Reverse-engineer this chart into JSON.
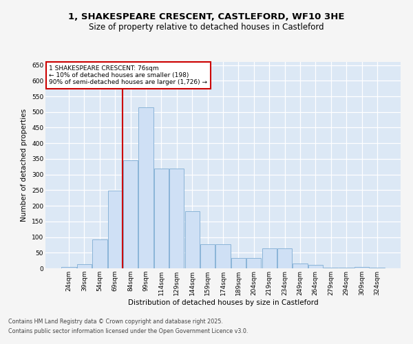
{
  "title1": "1, SHAKESPEARE CRESCENT, CASTLEFORD, WF10 3HE",
  "title2": "Size of property relative to detached houses in Castleford",
  "xlabel": "Distribution of detached houses by size in Castleford",
  "ylabel": "Number of detached properties",
  "categories": [
    "24sqm",
    "39sqm",
    "54sqm",
    "69sqm",
    "84sqm",
    "99sqm",
    "114sqm",
    "129sqm",
    "144sqm",
    "159sqm",
    "174sqm",
    "189sqm",
    "204sqm",
    "219sqm",
    "234sqm",
    "249sqm",
    "264sqm",
    "279sqm",
    "294sqm",
    "309sqm",
    "324sqm"
  ],
  "values": [
    5,
    14,
    93,
    248,
    345,
    515,
    320,
    320,
    183,
    78,
    78,
    32,
    32,
    63,
    63,
    15,
    10,
    3,
    3,
    5,
    3
  ],
  "bar_color": "#cfe0f5",
  "bar_edge_color": "#8ab4d8",
  "vline_color": "#cc0000",
  "annotation_text": "1 SHAKESPEARE CRESCENT: 76sqm\n← 10% of detached houses are smaller (198)\n90% of semi-detached houses are larger (1,726) →",
  "annotation_box_facecolor": "#ffffff",
  "annotation_box_edgecolor": "#cc0000",
  "ylim": [
    0,
    660
  ],
  "yticks": [
    0,
    50,
    100,
    150,
    200,
    250,
    300,
    350,
    400,
    450,
    500,
    550,
    600,
    650
  ],
  "bg_color": "#dce8f5",
  "grid_color": "#ffffff",
  "fig_facecolor": "#f5f5f5",
  "footer1": "Contains HM Land Registry data © Crown copyright and database right 2025.",
  "footer2": "Contains public sector information licensed under the Open Government Licence v3.0."
}
